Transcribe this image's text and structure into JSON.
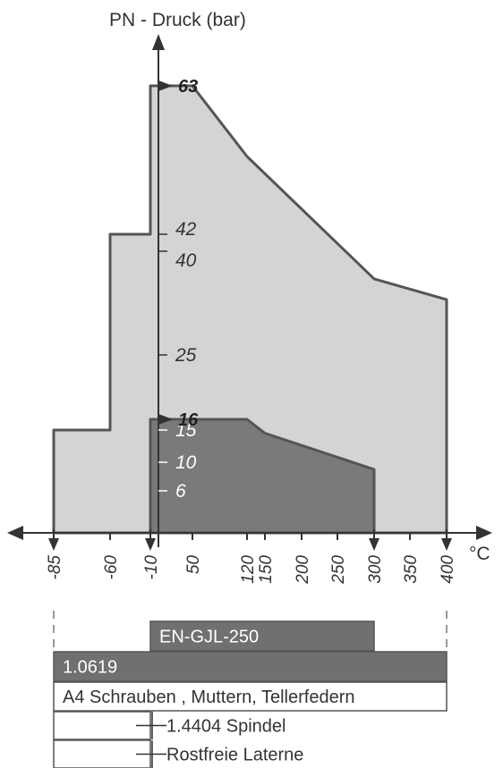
{
  "chart_data": {
    "type": "area",
    "title": "",
    "xlabel": "°C",
    "ylabel": "PN - Druck (bar)",
    "x_ticks": [
      "-85",
      "-60",
      "-10",
      "50",
      "120",
      "150",
      "200",
      "250",
      "300",
      "350",
      "400"
    ],
    "y_ticks": [
      "6",
      "10",
      "15",
      "16",
      "25",
      "40",
      "42",
      "63"
    ],
    "y_ticks_bold": [
      "16",
      "63"
    ],
    "series": [
      {
        "name": "",
        "fill": "#d4d4d4",
        "points": [
          [
            -85,
            0
          ],
          [
            -85,
            15
          ],
          [
            -60,
            15
          ],
          [
            -60,
            42
          ],
          [
            -10,
            42
          ],
          [
            -10,
            63
          ],
          [
            50,
            63
          ],
          [
            120,
            53
          ],
          [
            300,
            36
          ],
          [
            400,
            33
          ],
          [
            400,
            0
          ]
        ]
      },
      {
        "name": "",
        "fill": "#7a7a7a",
        "points": [
          [
            -10,
            0
          ],
          [
            -10,
            16
          ],
          [
            120,
            16
          ],
          [
            150,
            14.5
          ],
          [
            300,
            9
          ],
          [
            300,
            0
          ]
        ]
      }
    ],
    "material_bars": [
      {
        "label": "EN-GJL-250",
        "from": "-10",
        "to": "300",
        "fill": "#707070",
        "text_color": "#ffffff"
      },
      {
        "label": "1.0619",
        "from": "-85",
        "to": "400",
        "fill": "#707070",
        "text_color": "#ffffff"
      },
      {
        "label": "A4 Schrauben , Muttern, Tellerfedern",
        "from": "-85",
        "to": "400",
        "fill": "#ffffff",
        "text_color": "#333333"
      },
      {
        "label": "1.4404 Spindel",
        "from": "-85",
        "to": "-10",
        "fill": "#ffffff",
        "text_color": "#333333"
      },
      {
        "label": "Rostfreie Laterne",
        "from": "-85",
        "to": "-10",
        "fill": "#ffffff",
        "text_color": "#333333"
      }
    ]
  }
}
